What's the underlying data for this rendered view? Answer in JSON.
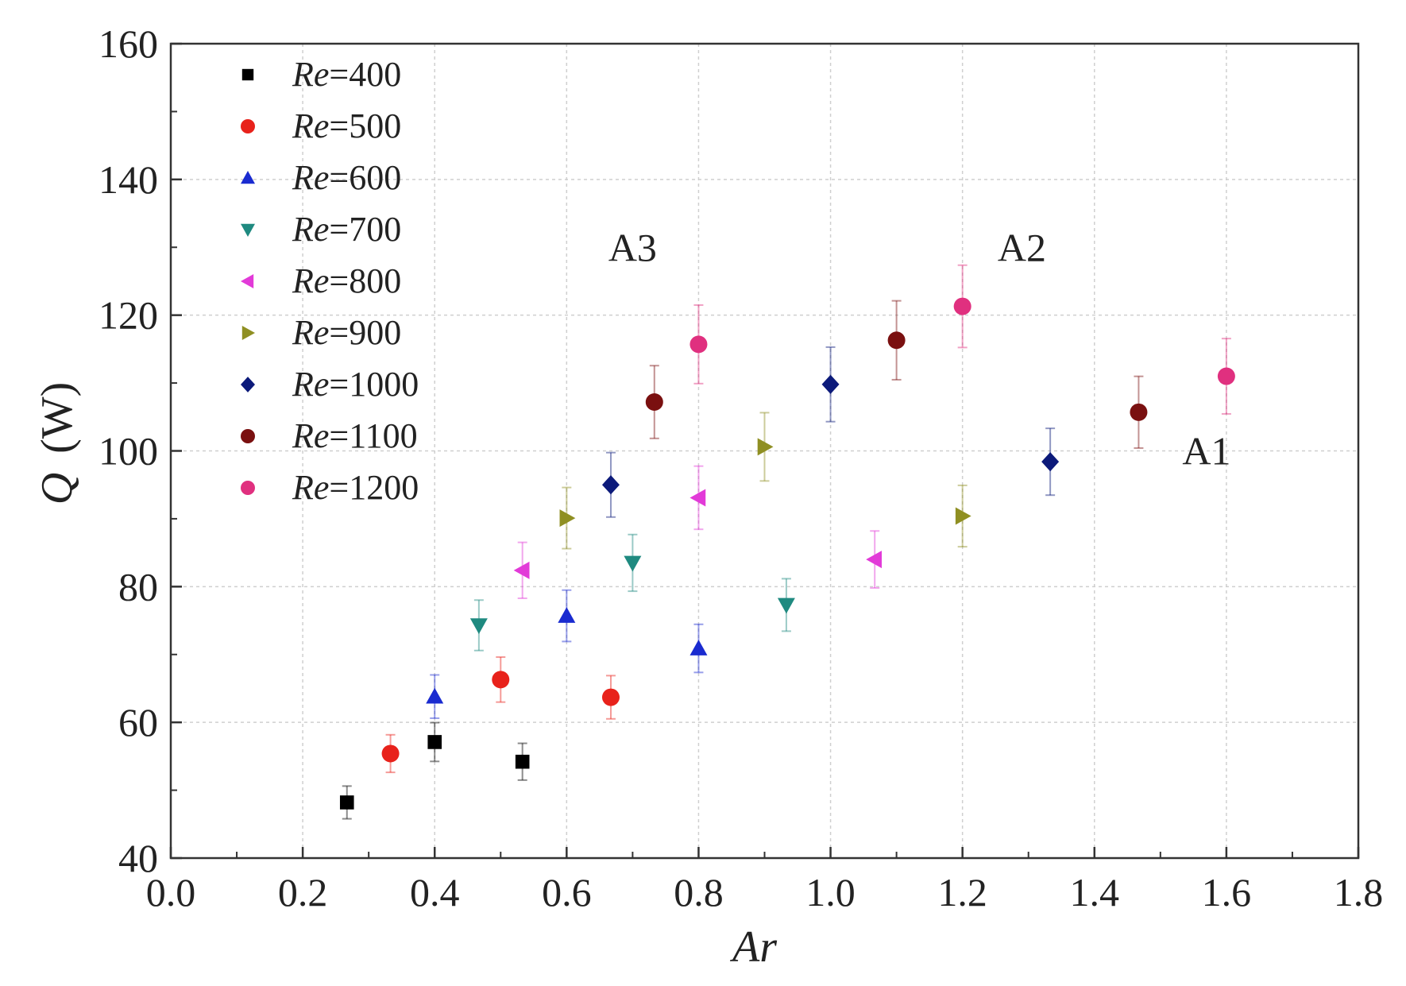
{
  "chart_data": {
    "type": "scatter",
    "xlabel": "Ar",
    "ylabel_symbol": "Q",
    "ylabel_unit": "(W)",
    "xlim": [
      0.0,
      1.8
    ],
    "ylim": [
      40,
      160
    ],
    "x_ticks": [
      "0.0",
      "0.2",
      "0.4",
      "0.6",
      "0.8",
      "1.0",
      "1.2",
      "1.4",
      "1.6",
      "1.8"
    ],
    "y_ticks": [
      "40",
      "60",
      "80",
      "100",
      "120",
      "140",
      "160"
    ],
    "grid": true,
    "legend_position": "top-left",
    "error_bar_pct": 5,
    "annotations": [
      {
        "text": "A3",
        "x": 0.7,
        "y": 128
      },
      {
        "text": "A2",
        "x": 1.29,
        "y": 128
      },
      {
        "text": "A1",
        "x": 1.57,
        "y": 98
      }
    ],
    "series": [
      {
        "name": "Re=400",
        "name_italic": "Re",
        "name_rest": "=400",
        "marker": "square",
        "color": "#000000",
        "points": [
          [
            0.267,
            48.2
          ],
          [
            0.4,
            57.1
          ],
          [
            0.533,
            54.2
          ]
        ]
      },
      {
        "name": "Re=500",
        "name_italic": "Re",
        "name_rest": "=500",
        "marker": "circle",
        "color": "#e8221b",
        "points": [
          [
            0.333,
            55.4
          ],
          [
            0.5,
            66.3
          ],
          [
            0.667,
            63.7
          ]
        ]
      },
      {
        "name": "Re=600",
        "name_italic": "Re",
        "name_rest": "=600",
        "marker": "triangle-up",
        "color": "#1a2bd0",
        "points": [
          [
            0.4,
            63.8
          ],
          [
            0.6,
            75.7
          ],
          [
            0.8,
            70.9
          ]
        ]
      },
      {
        "name": "Re=700",
        "name_italic": "Re",
        "name_rest": "=700",
        "marker": "triangle-down",
        "color": "#1f8a80",
        "points": [
          [
            0.467,
            74.3
          ],
          [
            0.7,
            83.5
          ],
          [
            0.933,
            77.3
          ]
        ]
      },
      {
        "name": "Re=800",
        "name_italic": "Re",
        "name_rest": "=800",
        "marker": "triangle-left",
        "color": "#e23ad8",
        "points": [
          [
            0.533,
            82.4
          ],
          [
            0.8,
            93.1
          ],
          [
            1.067,
            84.0
          ]
        ]
      },
      {
        "name": "Re=900",
        "name_italic": "Re",
        "name_rest": "=900",
        "marker": "triangle-right",
        "color": "#8f8f22",
        "points": [
          [
            0.6,
            90.1
          ],
          [
            0.9,
            100.6
          ],
          [
            1.2,
            90.4
          ]
        ]
      },
      {
        "name": "Re=1000",
        "name_italic": "Re",
        "name_rest": "=1000",
        "marker": "diamond",
        "color": "#0c1a7a",
        "points": [
          [
            0.667,
            95.0
          ],
          [
            1.0,
            109.8
          ],
          [
            1.333,
            98.4
          ]
        ]
      },
      {
        "name": "Re=1100",
        "name_italic": "Re",
        "name_rest": "=1100",
        "marker": "circle",
        "color": "#7a1010",
        "points": [
          [
            0.733,
            107.2
          ],
          [
            1.1,
            116.3
          ],
          [
            1.467,
            105.7
          ]
        ]
      },
      {
        "name": "Re=1200",
        "name_italic": "Re",
        "name_rest": "=1200",
        "marker": "circle",
        "color": "#e0307f",
        "points": [
          [
            0.8,
            115.7
          ],
          [
            1.2,
            121.3
          ],
          [
            1.6,
            111.0
          ]
        ]
      }
    ]
  }
}
